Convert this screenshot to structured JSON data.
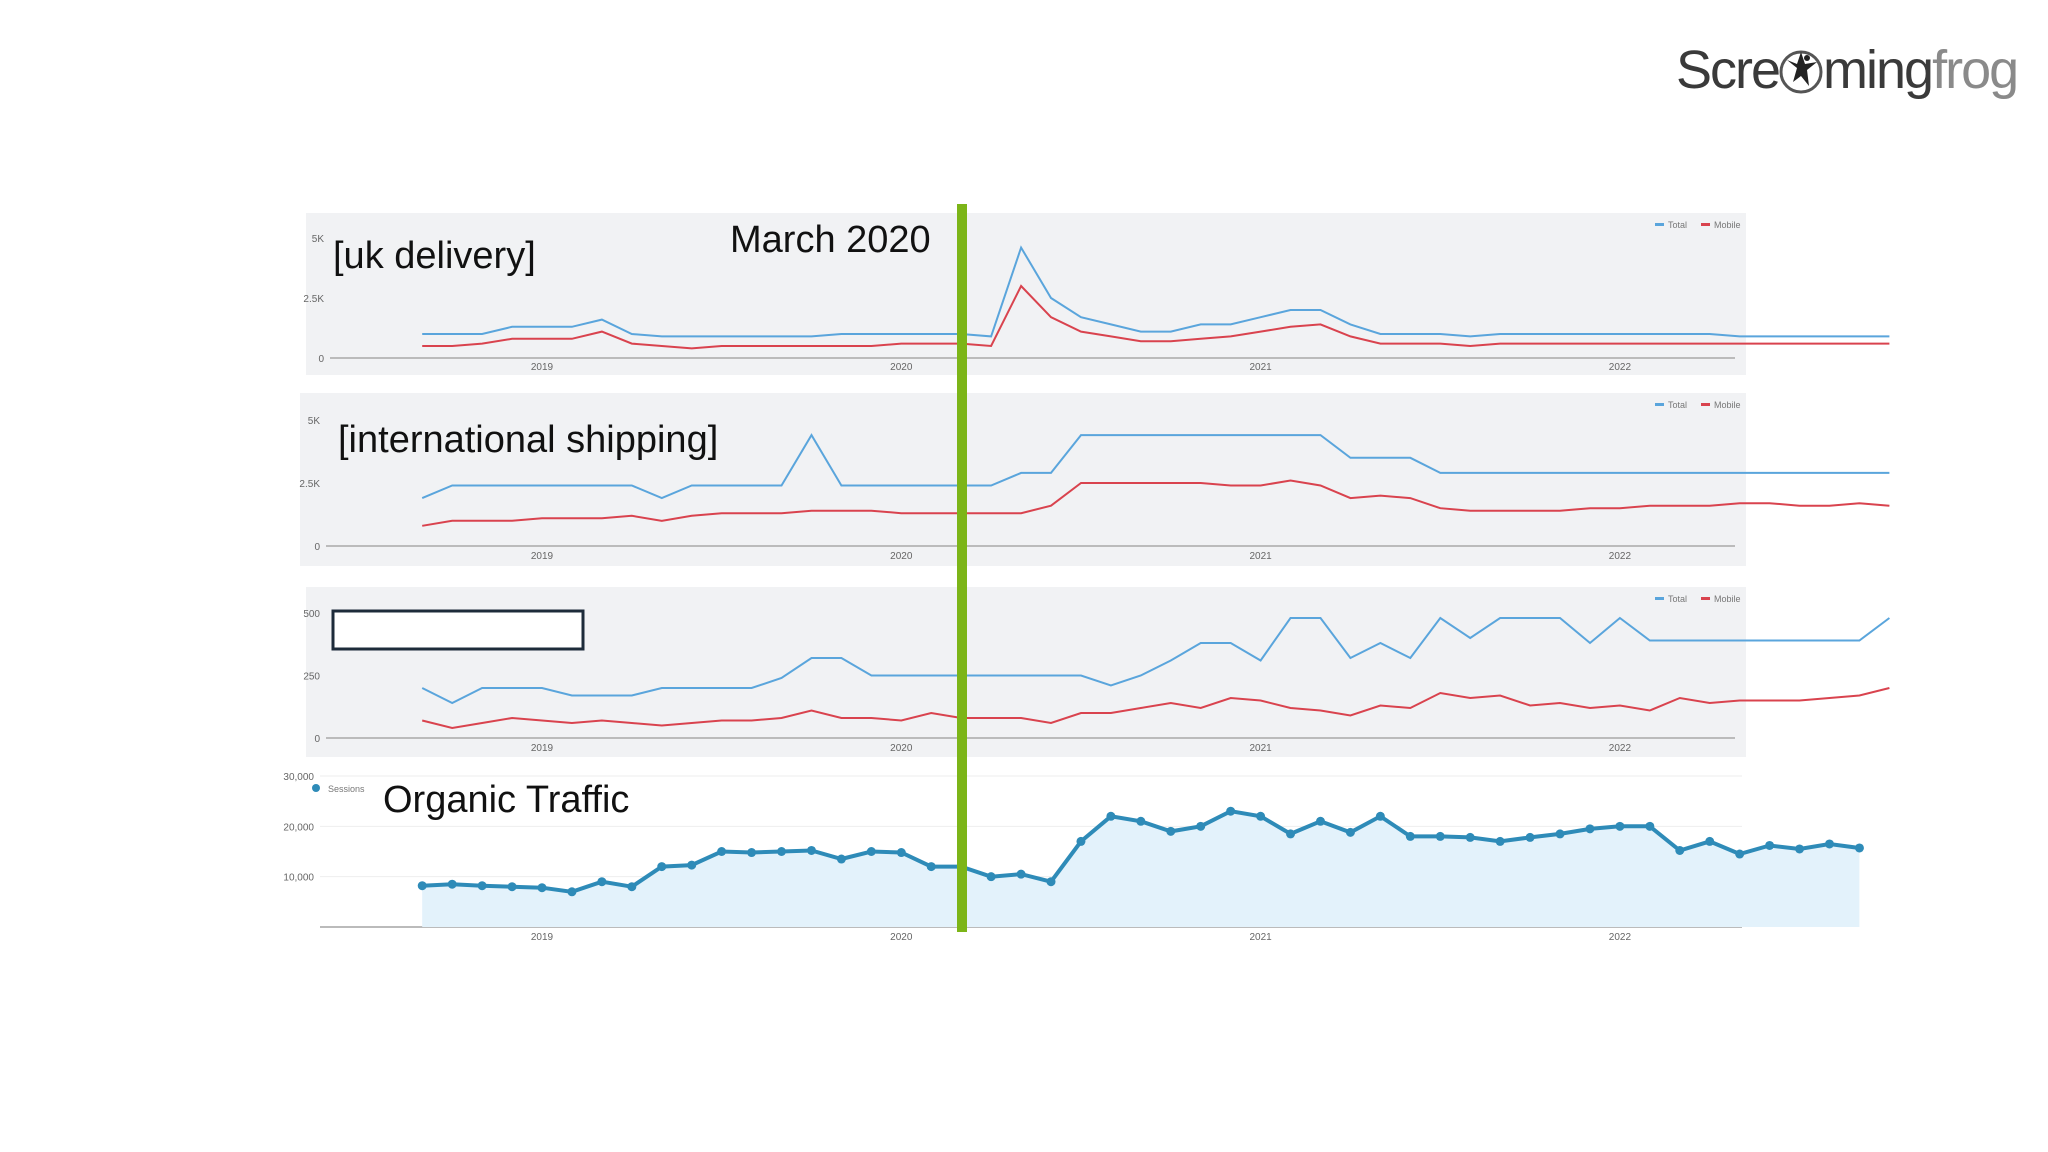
{
  "logo": {
    "text_a": "Scre",
    "text_b": "ming",
    "text_c": "frog"
  },
  "marker": {
    "label": "March 2020",
    "color": "#7cb518"
  },
  "colors": {
    "total": "#5aa5dc",
    "mobile": "#d9434e",
    "sessions": "#2e8bb8",
    "sessions_fill": "#e3f2fb",
    "panel_bg": "#f1f2f4"
  },
  "chart_data": [
    {
      "type": "line",
      "label": "[uk delivery]",
      "legend": [
        "Total",
        "Mobile"
      ],
      "x_labels": [
        "2019",
        "2020",
        "2021",
        "2022"
      ],
      "y_ticks": [
        "0",
        "2.5K",
        "5K"
      ],
      "ylim": [
        0,
        5000
      ],
      "x": [
        "2018-09",
        "2018-10",
        "2018-11",
        "2018-12",
        "2019-01",
        "2019-02",
        "2019-03",
        "2019-04",
        "2019-05",
        "2019-06",
        "2019-07",
        "2019-08",
        "2019-09",
        "2019-10",
        "2019-11",
        "2019-12",
        "2020-01",
        "2020-02",
        "2020-03",
        "2020-04",
        "2020-05",
        "2020-06",
        "2020-07",
        "2020-08",
        "2020-09",
        "2020-10",
        "2020-11",
        "2020-12",
        "2021-01",
        "2021-02",
        "2021-03",
        "2021-04",
        "2021-05",
        "2021-06",
        "2021-07",
        "2021-08",
        "2021-09",
        "2021-10",
        "2021-11",
        "2021-12",
        "2022-01",
        "2022-02",
        "2022-03",
        "2022-04",
        "2022-05",
        "2022-06",
        "2022-07",
        "2022-08",
        "2022-09",
        "2022-10"
      ],
      "series": [
        {
          "name": "Total",
          "values": [
            1000,
            1000,
            1000,
            1300,
            1300,
            1300,
            1600,
            1000,
            900,
            900,
            900,
            900,
            900,
            900,
            1000,
            1000,
            1000,
            1000,
            1000,
            900,
            4600,
            2500,
            1700,
            1400,
            1100,
            1100,
            1400,
            1400,
            1700,
            2000,
            2000,
            1400,
            1000,
            1000,
            1000,
            900,
            1000,
            1000,
            1000,
            1000,
            1000,
            1000,
            1000,
            1000,
            900,
            900,
            900,
            900,
            900,
            900
          ]
        },
        {
          "name": "Mobile",
          "values": [
            500,
            500,
            600,
            800,
            800,
            800,
            1100,
            600,
            500,
            400,
            500,
            500,
            500,
            500,
            500,
            500,
            600,
            600,
            600,
            500,
            3000,
            1700,
            1100,
            900,
            700,
            700,
            800,
            900,
            1100,
            1300,
            1400,
            900,
            600,
            600,
            600,
            500,
            600,
            600,
            600,
            600,
            600,
            600,
            600,
            600,
            600,
            600,
            600,
            600,
            600,
            600
          ]
        }
      ]
    },
    {
      "type": "line",
      "label": "[international shipping]",
      "legend": [
        "Total",
        "Mobile"
      ],
      "x_labels": [
        "2019",
        "2020",
        "2021",
        "2022"
      ],
      "y_ticks": [
        "0",
        "2.5K",
        "5K"
      ],
      "ylim": [
        0,
        5000
      ],
      "x": [
        "2018-09",
        "2018-10",
        "2018-11",
        "2018-12",
        "2019-01",
        "2019-02",
        "2019-03",
        "2019-04",
        "2019-05",
        "2019-06",
        "2019-07",
        "2019-08",
        "2019-09",
        "2019-10",
        "2019-11",
        "2019-12",
        "2020-01",
        "2020-02",
        "2020-03",
        "2020-04",
        "2020-05",
        "2020-06",
        "2020-07",
        "2020-08",
        "2020-09",
        "2020-10",
        "2020-11",
        "2020-12",
        "2021-01",
        "2021-02",
        "2021-03",
        "2021-04",
        "2021-05",
        "2021-06",
        "2021-07",
        "2021-08",
        "2021-09",
        "2021-10",
        "2021-11",
        "2021-12",
        "2022-01",
        "2022-02",
        "2022-03",
        "2022-04",
        "2022-05",
        "2022-06",
        "2022-07",
        "2022-08",
        "2022-09",
        "2022-10"
      ],
      "series": [
        {
          "name": "Total",
          "values": [
            1900,
            2400,
            2400,
            2400,
            2400,
            2400,
            2400,
            2400,
            1900,
            2400,
            2400,
            2400,
            2400,
            4400,
            2400,
            2400,
            2400,
            2400,
            2400,
            2400,
            2900,
            2900,
            4400,
            4400,
            4400,
            4400,
            4400,
            4400,
            4400,
            4400,
            4400,
            3500,
            3500,
            3500,
            2900,
            2900,
            2900,
            2900,
            2900,
            2900,
            2900,
            2900,
            2900,
            2900,
            2900,
            2900,
            2900,
            2900,
            2900,
            2900
          ]
        },
        {
          "name": "Mobile",
          "values": [
            800,
            1000,
            1000,
            1000,
            1100,
            1100,
            1100,
            1200,
            1000,
            1200,
            1300,
            1300,
            1300,
            1400,
            1400,
            1400,
            1300,
            1300,
            1300,
            1300,
            1300,
            1600,
            2500,
            2500,
            2500,
            2500,
            2500,
            2400,
            2400,
            2600,
            2400,
            1900,
            2000,
            1900,
            1500,
            1400,
            1400,
            1400,
            1400,
            1500,
            1500,
            1600,
            1600,
            1600,
            1700,
            1700,
            1600,
            1600,
            1700,
            1600
          ]
        }
      ]
    },
    {
      "type": "line",
      "label": "",
      "legend": [
        "Total",
        "Mobile"
      ],
      "x_labels": [
        "2019",
        "2020",
        "2021",
        "2022"
      ],
      "y_ticks": [
        "0",
        "250",
        "500"
      ],
      "ylim": [
        0,
        500
      ],
      "x": [
        "2018-09",
        "2018-10",
        "2018-11",
        "2018-12",
        "2019-01",
        "2019-02",
        "2019-03",
        "2019-04",
        "2019-05",
        "2019-06",
        "2019-07",
        "2019-08",
        "2019-09",
        "2019-10",
        "2019-11",
        "2019-12",
        "2020-01",
        "2020-02",
        "2020-03",
        "2020-04",
        "2020-05",
        "2020-06",
        "2020-07",
        "2020-08",
        "2020-09",
        "2020-10",
        "2020-11",
        "2020-12",
        "2021-01",
        "2021-02",
        "2021-03",
        "2021-04",
        "2021-05",
        "2021-06",
        "2021-07",
        "2021-08",
        "2021-09",
        "2021-10",
        "2021-11",
        "2021-12",
        "2022-01",
        "2022-02",
        "2022-03",
        "2022-04",
        "2022-05",
        "2022-06",
        "2022-07",
        "2022-08",
        "2022-09",
        "2022-10"
      ],
      "series": [
        {
          "name": "Total",
          "values": [
            200,
            140,
            200,
            200,
            200,
            170,
            170,
            170,
            200,
            200,
            200,
            200,
            240,
            320,
            320,
            250,
            250,
            250,
            250,
            250,
            250,
            250,
            250,
            210,
            250,
            310,
            380,
            380,
            310,
            480,
            480,
            320,
            380,
            320,
            480,
            400,
            480,
            480,
            480,
            380,
            480,
            390,
            390,
            390,
            390,
            390,
            390,
            390,
            390,
            480
          ]
        },
        {
          "name": "Mobile",
          "values": [
            70,
            40,
            60,
            80,
            70,
            60,
            70,
            60,
            50,
            60,
            70,
            70,
            80,
            110,
            80,
            80,
            70,
            100,
            80,
            80,
            80,
            60,
            100,
            100,
            120,
            140,
            120,
            160,
            150,
            120,
            110,
            90,
            130,
            120,
            180,
            160,
            170,
            130,
            140,
            120,
            130,
            110,
            160,
            140,
            150,
            150,
            150,
            160,
            170,
            200
          ]
        }
      ]
    },
    {
      "type": "area",
      "label": "Organic Traffic",
      "legend": [
        "Sessions"
      ],
      "x_labels": [
        "2019",
        "2020",
        "2021",
        "2022"
      ],
      "y_ticks": [
        "10,000",
        "20,000",
        "30,000"
      ],
      "ylim": [
        0,
        30000
      ],
      "x": [
        "2018-09",
        "2018-10",
        "2018-11",
        "2018-12",
        "2019-01",
        "2019-02",
        "2019-03",
        "2019-04",
        "2019-05",
        "2019-06",
        "2019-07",
        "2019-08",
        "2019-09",
        "2019-10",
        "2019-11",
        "2019-12",
        "2020-01",
        "2020-02",
        "2020-03",
        "2020-04",
        "2020-05",
        "2020-06",
        "2020-07",
        "2020-08",
        "2020-09",
        "2020-10",
        "2020-11",
        "2020-12",
        "2021-01",
        "2021-02",
        "2021-03",
        "2021-04",
        "2021-05",
        "2021-06",
        "2021-07",
        "2021-08",
        "2021-09",
        "2021-10",
        "2021-11",
        "2021-12",
        "2022-01",
        "2022-02",
        "2022-03",
        "2022-04",
        "2022-05",
        "2022-06",
        "2022-07",
        "2022-08",
        "2022-09"
      ],
      "series": [
        {
          "name": "Sessions",
          "values": [
            8200,
            8500,
            8200,
            8000,
            7800,
            7000,
            9000,
            8000,
            12000,
            12300,
            15000,
            14800,
            15000,
            15200,
            13500,
            15000,
            14800,
            12000,
            12000,
            10000,
            10500,
            9000,
            17000,
            22000,
            21000,
            19000,
            20000,
            23000,
            22000,
            18500,
            21000,
            18800,
            22000,
            18000,
            18000,
            17800,
            17000,
            17800,
            18500,
            19500,
            20000,
            20000,
            15200,
            17000,
            14500,
            16200,
            15500,
            16500,
            15700
          ]
        }
      ]
    }
  ]
}
